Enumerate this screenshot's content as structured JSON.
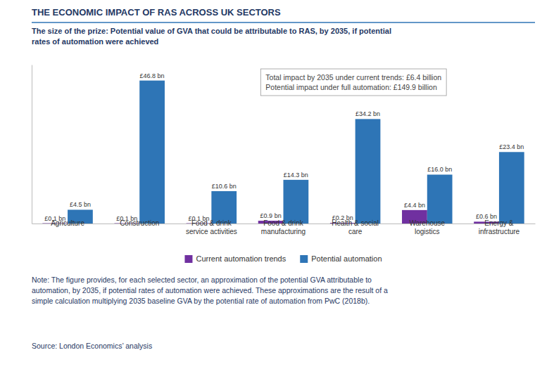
{
  "chart_data": {
    "type": "bar",
    "title": "THE ECONOMIC IMPACT OF RAS ACROSS UK SECTORS",
    "subtitle": "The size of the prize: Potential value of GVA that could be attributable to RAS, by 2035, if potential\nrates of automation were achieved",
    "categories": [
      "Agriculture",
      "Construction",
      "Food & drink\nservice activities",
      "Food & drink\nmanufacturing",
      "Health & social\ncare",
      "Warehouse\nlogistics",
      "Energy &\ninfrastructure"
    ],
    "series": [
      {
        "name": "Current automation trends",
        "color": "#7030a0",
        "values": [
          0.1,
          0.1,
          0.1,
          0.9,
          0.2,
          4.4,
          0.6
        ],
        "value_labels": [
          "£0.1 bn",
          "£0.1 bn",
          "£0.1 bn",
          "£0.9 bn",
          "£0.2 bn",
          "£4.4 bn",
          "£0.6 bn"
        ]
      },
      {
        "name": "Potential automation",
        "color": "#2e75b6",
        "values": [
          4.5,
          46.8,
          10.6,
          14.3,
          34.2,
          16.0,
          23.4
        ],
        "value_labels": [
          "£4.5 bn",
          "£46.8 bn",
          "£10.6 bn",
          "£14.3 bn",
          "£34.2 bn",
          "£16.0 bn",
          "£23.4 bn"
        ]
      }
    ],
    "ylim": [
      0,
      52
    ],
    "tick_labels": "x",
    "data_labels": true,
    "grid": false,
    "legend": "bottom",
    "annotations": [
      "Total impact by 2035 under current trends: £6.4 billion",
      "Potential impact under full automation: £149.9 billion"
    ],
    "note": "Note: The figure provides, for each selected sector, an approximation of the potential GVA attributable to\nautomation, by 2035, if potential rates of automation were achieved. These approximations are the result of a\nsimple calculation multiplying 2035 baseline GVA by the potential rate of automation from PwC (2018b).",
    "source": "Source: London Economics’ analysis"
  }
}
